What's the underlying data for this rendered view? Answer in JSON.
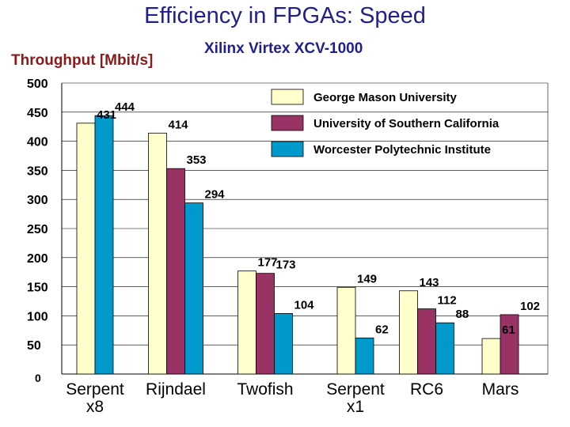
{
  "chart_data": {
    "type": "bar",
    "title": "Efficiency in FPGAs: Speed",
    "subtitle": "Xilinx Virtex XCV-1000",
    "ylabel": "Throughput [Mbit/s]",
    "xlabel": "",
    "ylim": [
      0,
      500
    ],
    "yticks": [
      "0",
      "50",
      "100",
      "150",
      "200",
      "250",
      "300",
      "350",
      "400",
      "450",
      "500"
    ],
    "grid": true,
    "legend_position": "top-right",
    "categories": [
      [
        "Serpent",
        "x8"
      ],
      [
        "Rijndael"
      ],
      [
        "Twofish"
      ],
      [
        "Serpent",
        "x1"
      ],
      [
        "RC6"
      ],
      [
        "Mars"
      ]
    ],
    "series": [
      {
        "name": "George Mason University",
        "color": "#ffffcc",
        "values": [
          431,
          414,
          177,
          149,
          143,
          61
        ]
      },
      {
        "name": "University of Southern California",
        "color": "#993366",
        "values": [
          null,
          353,
          173,
          null,
          112,
          102
        ]
      },
      {
        "name": "Worcester Polytechnic Institute",
        "color": "#0099cc",
        "values": [
          444,
          294,
          104,
          62,
          88,
          null
        ]
      }
    ],
    "data_labels": [
      [
        "431",
        "414",
        "177",
        "149",
        "143",
        "61"
      ],
      [
        "",
        "353",
        "173",
        "",
        "112",
        "102"
      ],
      [
        "444",
        "294",
        "104",
        "62",
        "88",
        ""
      ]
    ]
  }
}
